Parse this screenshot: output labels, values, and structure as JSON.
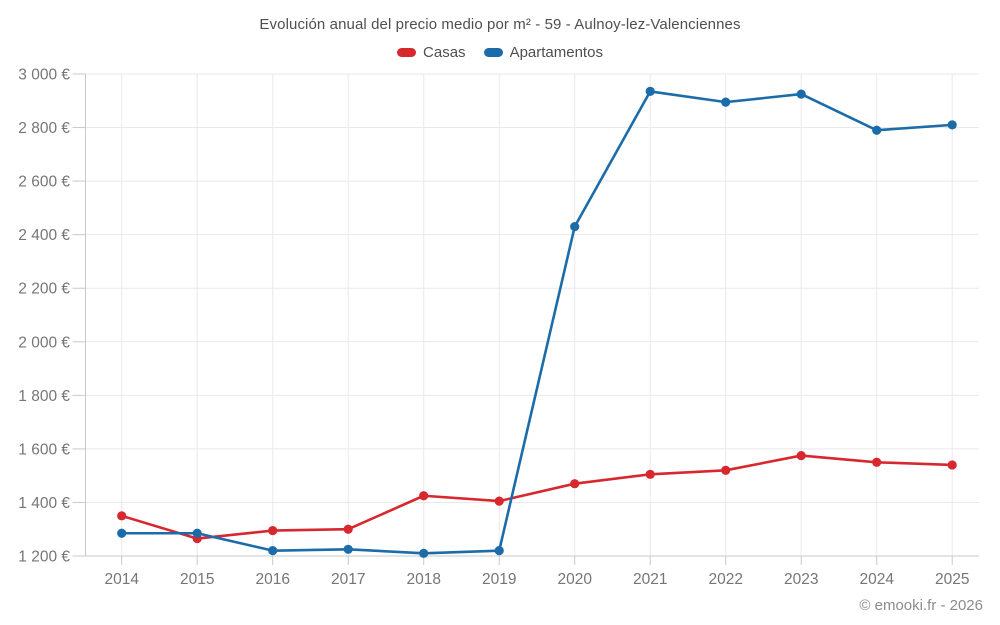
{
  "header": {
    "title": "Evolución anual del precio medio por m² - 59 - Aulnoy-lez-Valenciennes"
  },
  "footer": {
    "credit": "© emooki.fr - 2026"
  },
  "colors": {
    "casas": "#d7282f",
    "apartamentos": "#1b6ca8",
    "title_text": "#4f4f4f",
    "axis_text": "#767676",
    "gridline": "#e9e9e9",
    "axis_line": "#c9c9c9",
    "footer_text": "#8c8c8c",
    "background": "#ffffff"
  },
  "chart_data": {
    "type": "line",
    "title": "Evolución anual del precio medio por m² - 59 - Aulnoy-lez-Valenciennes",
    "categories": [
      "2014",
      "2015",
      "2016",
      "2017",
      "2018",
      "2019",
      "2020",
      "2021",
      "2022",
      "2023",
      "2024",
      "2025"
    ],
    "series": [
      {
        "name": "Casas",
        "color": "#d7282f",
        "values": [
          1350,
          1265,
          1295,
          1300,
          1425,
          1405,
          1470,
          1505,
          1520,
          1575,
          1550,
          1540
        ]
      },
      {
        "name": "Apartamentos",
        "color": "#1b6ca8",
        "values": [
          1285,
          1285,
          1220,
          1225,
          1210,
          1220,
          2430,
          2935,
          2895,
          2925,
          2790,
          2810
        ]
      }
    ],
    "xlabel": "",
    "ylabel": "",
    "ylim": [
      1200,
      3000
    ],
    "ytick_step": 200,
    "ytick_labels": [
      "1 200 €",
      "1 400 €",
      "1 600 €",
      "1 800 €",
      "2 000 €",
      "2 200 €",
      "2 400 €",
      "2 600 €",
      "2 800 €",
      "3 000 €"
    ],
    "grid": true,
    "legend_position": "top"
  }
}
